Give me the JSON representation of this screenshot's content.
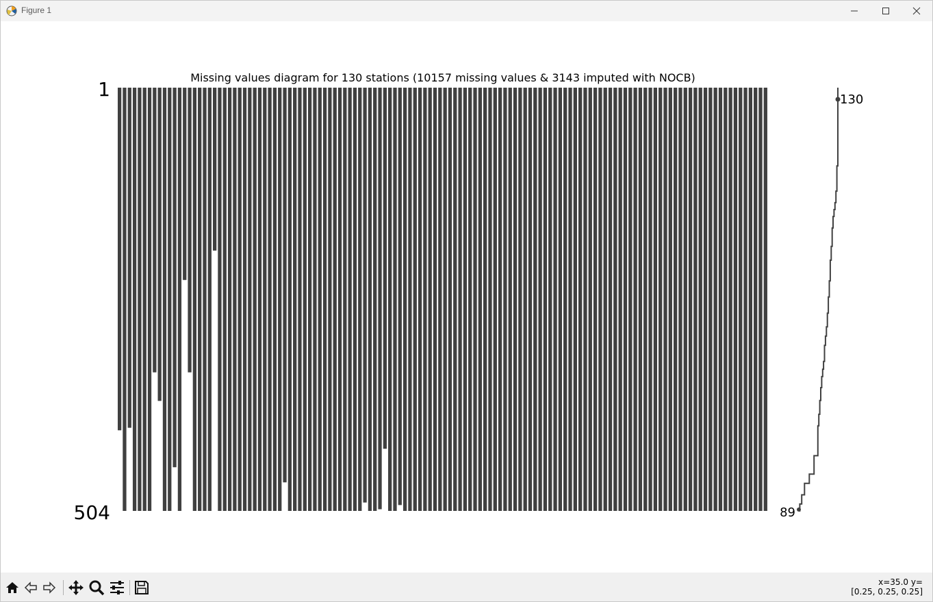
{
  "window": {
    "title": "Figure 1",
    "icons": {
      "app": "matplotlib-icon",
      "minimize": "minimize-icon",
      "maximize": "maximize-icon",
      "close": "close-icon"
    }
  },
  "chart_data": {
    "type": "missingness-matrix",
    "title": "Missing values diagram for 130 stations (10157 missing values & 3143 imputed with NOCB)",
    "y_tick_labels": [
      "1",
      "504"
    ],
    "row_range": [
      1,
      504
    ],
    "column_count": 130,
    "bar_color": "#404040",
    "columns_filled_until_row": [
      408,
      504,
      405,
      504,
      504,
      504,
      504,
      339,
      373,
      504,
      504,
      452,
      504,
      229,
      339,
      504,
      504,
      504,
      504,
      194,
      504,
      504,
      504,
      504,
      504,
      504,
      504,
      504,
      504,
      504,
      504,
      504,
      504,
      470,
      504,
      504,
      504,
      504,
      504,
      504,
      504,
      504,
      504,
      504,
      504,
      504,
      504,
      504,
      504,
      494,
      504,
      504,
      502,
      430,
      504,
      504,
      497,
      504,
      504,
      504,
      504,
      504,
      504,
      504,
      504,
      504,
      504,
      504,
      504,
      504,
      504,
      504,
      504,
      504,
      504,
      504,
      504,
      504,
      504,
      504,
      504,
      504,
      504,
      504,
      504,
      504,
      504,
      504,
      504,
      504,
      504,
      504,
      504,
      504,
      504,
      504,
      504,
      504,
      504,
      504,
      504,
      504,
      504,
      504,
      504,
      504,
      504,
      504,
      504,
      504,
      504,
      504,
      504,
      504,
      504,
      504,
      504,
      504,
      504,
      504,
      504,
      504,
      504,
      504,
      504,
      504,
      504,
      504,
      504,
      504
    ],
    "columns_gap_rows": [
      null,
      null,
      null,
      null,
      null,
      null,
      null,
      null,
      null,
      null,
      null,
      null,
      null,
      null,
      null,
      null,
      null,
      null,
      null,
      null,
      null,
      null,
      null,
      null,
      null,
      null,
      null,
      null,
      null,
      null,
      null,
      null,
      null,
      null,
      null,
      null,
      null,
      null,
      null,
      null,
      null,
      null,
      null,
      null,
      null,
      null,
      null,
      null,
      null,
      null,
      null,
      null,
      null,
      null,
      null,
      null,
      null,
      null,
      null,
      null,
      null,
      null,
      null,
      null,
      null,
      null,
      null,
      null,
      null,
      null,
      null,
      null,
      null,
      null,
      null,
      null,
      null,
      null,
      null,
      null,
      null,
      null,
      null,
      null,
      null,
      null,
      null,
      null,
      null,
      null,
      null,
      null,
      null,
      null,
      null,
      null,
      null,
      null,
      null,
      null,
      null,
      null,
      null,
      null,
      null,
      null,
      null,
      null,
      null,
      null,
      null,
      null,
      null,
      null,
      null,
      null,
      null,
      null,
      null,
      null,
      null,
      null,
      null,
      null,
      null,
      null,
      null,
      null,
      null,
      null
    ],
    "sparkline": {
      "label_max": "130",
      "label_min": "89",
      "x_range": [
        89,
        130
      ]
    }
  },
  "toolbar": {
    "items": [
      {
        "name": "home-button",
        "icon": "home-icon"
      },
      {
        "name": "back-button",
        "icon": "arrow-left-icon"
      },
      {
        "name": "forward-button",
        "icon": "arrow-right-icon"
      },
      {
        "name": "pan-button",
        "icon": "move-icon"
      },
      {
        "name": "zoom-button",
        "icon": "magnifier-icon"
      },
      {
        "name": "configure-button",
        "icon": "sliders-icon"
      },
      {
        "name": "save-button",
        "icon": "floppy-disk-icon"
      }
    ],
    "coord_line1": "x=35.0 y=",
    "coord_line2": "[0.25, 0.25, 0.25]"
  }
}
